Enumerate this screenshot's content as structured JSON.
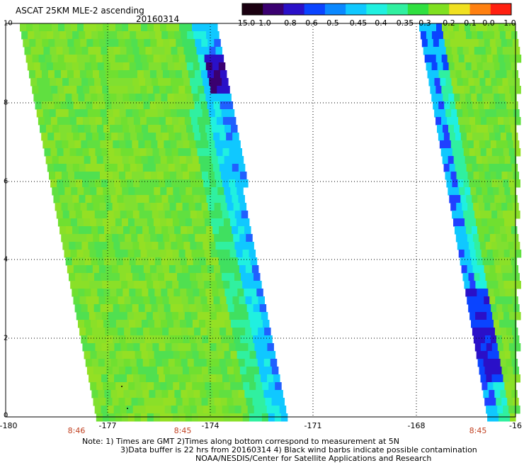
{
  "title": "ASCAT 25KM MLE-2 ascending",
  "date": "20160314",
  "colorbar": {
    "labels": [
      "-15.0",
      "-1.0",
      "-0.8",
      "-0.6",
      "-0.5",
      "-0.45",
      "-0.4",
      "-0.35",
      "-0.3",
      "-0.2",
      "-0.1",
      "0.0",
      "1.0"
    ],
    "colors": [
      "#1a0010",
      "#3a0070",
      "#2a10c8",
      "#0a44ff",
      "#0a88ff",
      "#10c8ff",
      "#20f0e0",
      "#30f0a0",
      "#30e040",
      "#80e020",
      "#f0e020",
      "#ff8010",
      "#ff2010"
    ]
  },
  "axes": {
    "y_ticks": [
      "10",
      "8",
      "6",
      "4",
      "2",
      "0"
    ],
    "x_ticks": [
      "-180",
      "-177",
      "-174",
      "-171",
      "-168",
      "-16"
    ]
  },
  "time_labels": [
    "8:46",
    "8:45",
    "8:45"
  ],
  "notes": [
    "Note: 1) Times are GMT 2)Times along bottom correspond to measurement at 5N",
    "3)Data buffer is 22 hrs from 20160314 4) Black wind barbs indicate possible contamination",
    "NOAA/NESDIS/Center for Satellite Applications and Research"
  ]
}
